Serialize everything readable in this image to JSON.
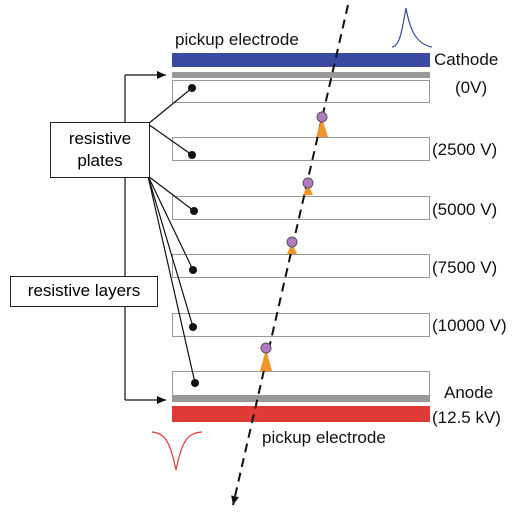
{
  "labels": {
    "top_electrode": "pickup electrode",
    "cathode": "Cathode",
    "cathode_voltage": "(0V)",
    "resistive_plates": "resistive plates",
    "resistive_layers": "resistive layers",
    "plate_voltages": [
      "(2500 V)",
      "(5000 V)",
      "(7500 V)",
      "(10000 V)"
    ],
    "anode": "Anode",
    "anode_voltage": "(12.5 kV)",
    "bottom_electrode": "pickup electrode"
  }
}
